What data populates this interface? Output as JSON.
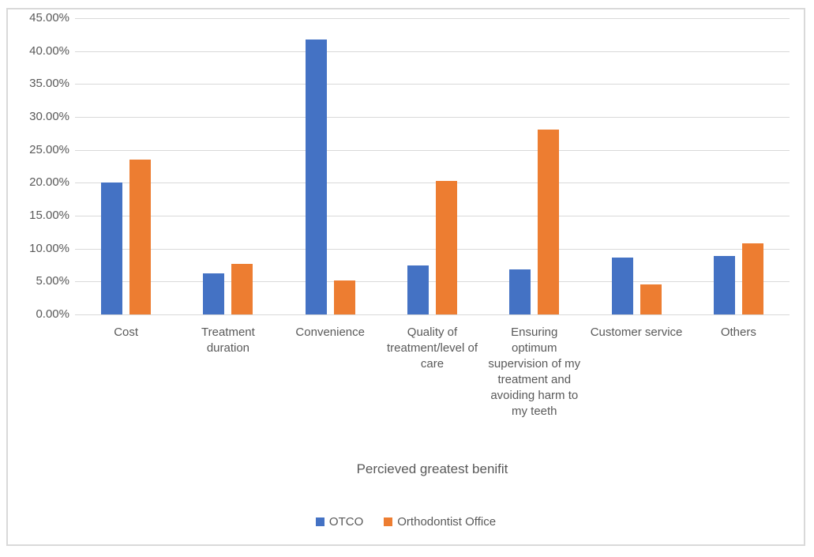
{
  "chart_data": {
    "type": "bar",
    "title": "",
    "xlabel": "Percieved greatest benifit",
    "ylabel": "",
    "ylim": [
      0,
      45
    ],
    "ytick_step": 5,
    "ytick_labels": [
      "45.00%",
      "40.00%",
      "35.00%",
      "30.00%",
      "25.00%",
      "20.00%",
      "15.00%",
      "10.00%",
      "5.00%",
      "0.00%"
    ],
    "grid": true,
    "legend_position": "bottom",
    "categories": [
      "Cost",
      "Treatment duration",
      "Convenience",
      "Quality of treatment/level of care",
      "Ensuring optimum supervision of my treatment and avoiding harm to my teeth",
      "Customer service",
      "Others"
    ],
    "series": [
      {
        "name": "OTCO",
        "color": "#4472C4",
        "values": [
          20.1,
          6.3,
          41.8,
          7.5,
          6.8,
          8.6,
          8.9
        ]
      },
      {
        "name": "Orthodontist Office",
        "color": "#ED7D31",
        "values": [
          23.5,
          7.7,
          5.2,
          20.3,
          28.1,
          4.6,
          10.8
        ]
      }
    ]
  },
  "colors": {
    "grid": "#D9D9D9",
    "border": "#D9D9D9",
    "axis_text": "#595959",
    "background": "#FFFFFF"
  }
}
